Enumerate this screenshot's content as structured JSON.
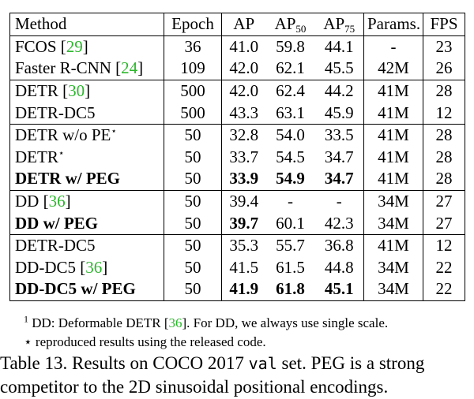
{
  "table": {
    "headers": {
      "method": "Method",
      "epoch": "Epoch",
      "ap": "AP",
      "ap50_base": "AP",
      "ap50_sub": "50",
      "ap75_base": "AP",
      "ap75_sub": "75",
      "params": "Params.",
      "fps": "FPS"
    },
    "rows": [
      {
        "method": "FCOS",
        "cite": "29",
        "star": "",
        "epoch": "36",
        "ap": "41.0",
        "ap50": "59.8",
        "ap75": "44.1",
        "params": "-",
        "fps": "23"
      },
      {
        "method": "Faster R-CNN",
        "cite": "24",
        "star": "",
        "epoch": "109",
        "ap": "42.0",
        "ap50": "62.1",
        "ap75": "45.5",
        "params": "42M",
        "fps": "26"
      },
      {
        "method": "DETR",
        "cite": "30",
        "star": "",
        "epoch": "500",
        "ap": "42.0",
        "ap50": "62.4",
        "ap75": "44.2",
        "params": "41M",
        "fps": "28"
      },
      {
        "method": "DETR-DC5",
        "cite": "",
        "star": "",
        "epoch": "500",
        "ap": "43.3",
        "ap50": "63.1",
        "ap75": "45.9",
        "params": "41M",
        "fps": "12"
      },
      {
        "method": "DETR w/o PE",
        "cite": "",
        "star": "⋆",
        "epoch": "50",
        "ap": "32.8",
        "ap50": "54.0",
        "ap75": "33.5",
        "params": "41M",
        "fps": "28"
      },
      {
        "method": "DETR",
        "cite": "",
        "star": "⋆",
        "epoch": "50",
        "ap": "33.7",
        "ap50": "54.5",
        "ap75": "34.7",
        "params": "41M",
        "fps": "28"
      },
      {
        "method": "DETR w/ PEG",
        "cite": "",
        "star": "",
        "epoch": "50",
        "ap": "33.9",
        "ap50": "54.9",
        "ap75": "34.7",
        "params": "41M",
        "fps": "28"
      },
      {
        "method": "DD",
        "cite": "36",
        "star": "",
        "epoch": "50",
        "ap": "39.4",
        "ap50": "-",
        "ap75": "-",
        "params": "34M",
        "fps": "27"
      },
      {
        "method": "DD w/ PEG",
        "cite": "",
        "star": "",
        "epoch": "50",
        "ap": "39.7",
        "ap50": "60.1",
        "ap75": "42.3",
        "params": "34M",
        "fps": "27"
      },
      {
        "method": "DETR-DC5",
        "cite": "",
        "star": "",
        "epoch": "50",
        "ap": "35.3",
        "ap50": "55.7",
        "ap75": "36.8",
        "params": "41M",
        "fps": "12"
      },
      {
        "method": "DD-DC5",
        "cite": "36",
        "star": "",
        "epoch": "50",
        "ap": "41.5",
        "ap50": "61.5",
        "ap75": "44.8",
        "params": "34M",
        "fps": "22"
      },
      {
        "method": "DD-DC5 w/ PEG",
        "cite": "",
        "star": "",
        "epoch": "50",
        "ap": "41.9",
        "ap50": "61.8",
        "ap75": "45.1",
        "params": "34M",
        "fps": "22"
      }
    ]
  },
  "notes": {
    "note1_mark": "1",
    "note1_text": "DD: Deformable DETR [",
    "note1_cite": "36",
    "note1_tail": "]. For DD, we always use single scale.",
    "note2_mark": "⋆",
    "note2_text": "reproduced results using the released code."
  },
  "caption": {
    "part1": "Table 13. Results on COCO 2017 ",
    "code": "val",
    "part2": " set. PEG is a strong competitor to the 2D sinusoidal positional encodings."
  }
}
